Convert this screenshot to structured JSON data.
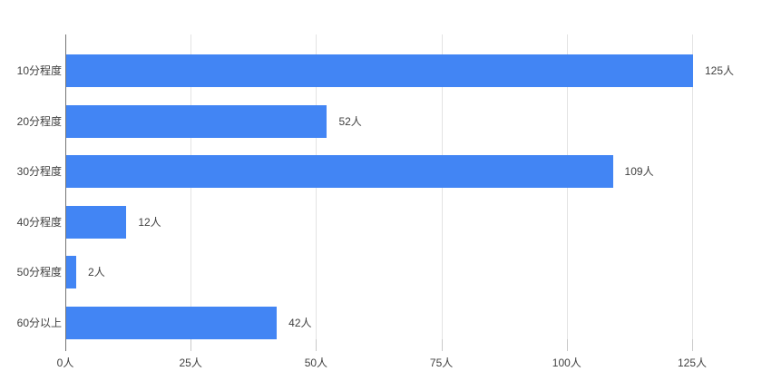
{
  "chart_data": {
    "type": "bar",
    "orientation": "horizontal",
    "title": "",
    "xlabel": "",
    "ylabel": "",
    "unit": "人",
    "categories": [
      "10分程度",
      "20分程度",
      "30分程度",
      "40分程度",
      "50分程度",
      "60分以上"
    ],
    "values": [
      125,
      52,
      109,
      12,
      2,
      42
    ],
    "value_labels": [
      "125人",
      "52人",
      "109人",
      "12人",
      "2人",
      "42人"
    ],
    "x_ticks": [
      {
        "value": 0,
        "label": "0人"
      },
      {
        "value": 25,
        "label": "25人"
      },
      {
        "value": 50,
        "label": "50人"
      },
      {
        "value": 75,
        "label": "75人"
      },
      {
        "value": 100,
        "label": "100人"
      },
      {
        "value": 125,
        "label": "125人"
      }
    ],
    "xlim": [
      0,
      125
    ],
    "grid": true,
    "legend": "none",
    "colors": {
      "bar": "#4285f4",
      "axis_line": "#757575",
      "gridline": "#e3e3e3",
      "tick": "#c9c9c9",
      "text": "#404040"
    }
  }
}
